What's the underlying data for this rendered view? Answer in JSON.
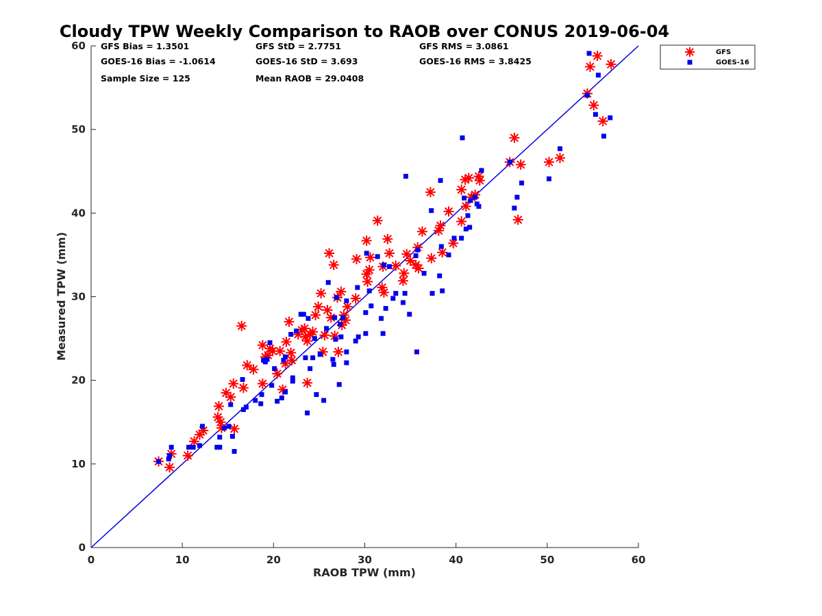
{
  "chart_data": {
    "type": "scatter",
    "title": "Cloudy TPW Weekly Comparison to RAOB over CONUS 2019-06-04",
    "xlabel": "RAOB TPW (mm)",
    "ylabel": "Measured TPW (mm)",
    "xlim": [
      0,
      60
    ],
    "ylim": [
      0,
      60
    ],
    "xticks": [
      "0",
      "10",
      "20",
      "30",
      "40",
      "50",
      "60"
    ],
    "yticks": [
      "0",
      "10",
      "20",
      "30",
      "40",
      "50",
      "60"
    ],
    "grid": false,
    "legend_position": "outside-top-right",
    "reference_line": {
      "type": "1:1",
      "color": "#0000dd"
    },
    "stats": [
      {
        "label": "GFS Bias = 1.3501"
      },
      {
        "label": "GFS StD = 2.7751"
      },
      {
        "label": "GFS RMS = 3.0861"
      },
      {
        "label": "GOES-16 Bias = -1.0614"
      },
      {
        "label": "GOES-16 StD = 3.693"
      },
      {
        "label": "GOES-16 RMS = 3.8425"
      },
      {
        "label": "Sample Size = 125"
      },
      {
        "label": "Mean RAOB = 29.0408"
      }
    ],
    "series": [
      {
        "name": "GFS",
        "marker": "asterisk",
        "color": "#ff0000",
        "points": [
          [
            7.4,
            10.3
          ],
          [
            8.6,
            9.6
          ],
          [
            8.8,
            11.2
          ],
          [
            10.6,
            11.0
          ],
          [
            11.3,
            12.7
          ],
          [
            11.9,
            13.5
          ],
          [
            12.3,
            14.0
          ],
          [
            13.9,
            15.6
          ],
          [
            14.0,
            16.9
          ],
          [
            14.2,
            15.0
          ],
          [
            14.3,
            14.3
          ],
          [
            14.8,
            18.5
          ],
          [
            15.3,
            18.0
          ],
          [
            15.6,
            19.6
          ],
          [
            15.7,
            14.2
          ],
          [
            16.5,
            26.5
          ],
          [
            16.7,
            19.1
          ],
          [
            17.1,
            21.8
          ],
          [
            17.8,
            21.3
          ],
          [
            18.8,
            24.2
          ],
          [
            18.8,
            19.6
          ],
          [
            19.1,
            22.8
          ],
          [
            19.4,
            23.0
          ],
          [
            19.6,
            23.8
          ],
          [
            19.9,
            23.5
          ],
          [
            20.4,
            20.8
          ],
          [
            20.7,
            23.5
          ],
          [
            21.0,
            18.9
          ],
          [
            21.3,
            22.0
          ],
          [
            21.4,
            24.6
          ],
          [
            21.7,
            27.0
          ],
          [
            21.9,
            23.3
          ],
          [
            22.0,
            22.4
          ],
          [
            22.7,
            25.5
          ],
          [
            23.1,
            26.0
          ],
          [
            23.4,
            26.2
          ],
          [
            23.5,
            25.2
          ],
          [
            23.7,
            24.7
          ],
          [
            23.7,
            19.7
          ],
          [
            24.0,
            25.5
          ],
          [
            24.3,
            25.8
          ],
          [
            24.6,
            27.8
          ],
          [
            24.9,
            28.8
          ],
          [
            25.2,
            30.4
          ],
          [
            25.4,
            23.4
          ],
          [
            25.6,
            25.4
          ],
          [
            25.9,
            28.4
          ],
          [
            26.1,
            35.2
          ],
          [
            26.3,
            27.5
          ],
          [
            26.6,
            33.8
          ],
          [
            26.7,
            25.3
          ],
          [
            27.0,
            29.9
          ],
          [
            27.1,
            23.4
          ],
          [
            27.4,
            30.6
          ],
          [
            27.5,
            26.6
          ],
          [
            27.7,
            27.8
          ],
          [
            27.9,
            27.2
          ],
          [
            28.1,
            28.8
          ],
          [
            29.0,
            29.8
          ],
          [
            29.1,
            34.5
          ],
          [
            30.2,
            36.7
          ],
          [
            30.2,
            32.7
          ],
          [
            30.3,
            31.8
          ],
          [
            30.5,
            33.2
          ],
          [
            30.6,
            34.7
          ],
          [
            31.4,
            39.1
          ],
          [
            31.9,
            31.1
          ],
          [
            32.0,
            33.6
          ],
          [
            32.1,
            30.5
          ],
          [
            32.5,
            36.9
          ],
          [
            32.7,
            35.2
          ],
          [
            33.4,
            33.7
          ],
          [
            34.2,
            31.9
          ],
          [
            34.3,
            32.8
          ],
          [
            34.6,
            35.1
          ],
          [
            35.0,
            34.3
          ],
          [
            35.6,
            33.8
          ],
          [
            35.8,
            35.9
          ],
          [
            35.9,
            33.4
          ],
          [
            36.3,
            37.8
          ],
          [
            37.2,
            42.5
          ],
          [
            37.3,
            34.6
          ],
          [
            38.1,
            37.9
          ],
          [
            38.3,
            38.5
          ],
          [
            38.5,
            35.3
          ],
          [
            39.2,
            40.2
          ],
          [
            39.7,
            36.4
          ],
          [
            40.6,
            42.8
          ],
          [
            40.6,
            39.0
          ],
          [
            41.0,
            44.0
          ],
          [
            41.1,
            40.8
          ],
          [
            41.4,
            44.2
          ],
          [
            41.7,
            41.9
          ],
          [
            42.1,
            42.2
          ],
          [
            42.5,
            44.4
          ],
          [
            42.6,
            43.9
          ],
          [
            45.9,
            46.1
          ],
          [
            46.4,
            49.0
          ],
          [
            46.8,
            39.2
          ],
          [
            47.1,
            45.8
          ],
          [
            50.2,
            46.1
          ],
          [
            51.4,
            46.6
          ],
          [
            54.4,
            54.3
          ],
          [
            54.7,
            57.5
          ],
          [
            55.1,
            52.9
          ],
          [
            55.5,
            58.8
          ],
          [
            56.1,
            51.0
          ],
          [
            57.0,
            57.8
          ]
        ]
      },
      {
        "name": "GOES-16",
        "marker": "square",
        "color": "#0000ee",
        "points": [
          [
            7.4,
            10.3
          ],
          [
            8.5,
            10.6
          ],
          [
            8.6,
            11.0
          ],
          [
            8.8,
            12.0
          ],
          [
            10.7,
            12.0
          ],
          [
            11.2,
            12.0
          ],
          [
            11.9,
            12.2
          ],
          [
            12.2,
            14.5
          ],
          [
            13.8,
            12.0
          ],
          [
            14.1,
            12.0
          ],
          [
            14.1,
            13.2
          ],
          [
            14.6,
            14.3
          ],
          [
            15.1,
            14.5
          ],
          [
            15.3,
            17.1
          ],
          [
            15.5,
            13.3
          ],
          [
            15.7,
            11.5
          ],
          [
            16.6,
            20.1
          ],
          [
            16.7,
            16.5
          ],
          [
            17.0,
            16.8
          ],
          [
            18.0,
            17.6
          ],
          [
            18.6,
            17.2
          ],
          [
            18.7,
            18.3
          ],
          [
            18.9,
            22.4
          ],
          [
            19.1,
            22.2
          ],
          [
            19.3,
            22.5
          ],
          [
            19.6,
            24.5
          ],
          [
            19.8,
            19.4
          ],
          [
            20.1,
            21.4
          ],
          [
            20.4,
            17.5
          ],
          [
            20.9,
            17.9
          ],
          [
            21.1,
            22.4
          ],
          [
            21.3,
            18.6
          ],
          [
            21.3,
            22.8
          ],
          [
            21.9,
            25.5
          ],
          [
            22.1,
            19.9
          ],
          [
            22.1,
            20.3
          ],
          [
            22.5,
            25.9
          ],
          [
            23.0,
            27.9
          ],
          [
            23.3,
            27.9
          ],
          [
            23.5,
            22.7
          ],
          [
            23.7,
            16.1
          ],
          [
            23.8,
            27.4
          ],
          [
            24.0,
            21.4
          ],
          [
            24.3,
            22.7
          ],
          [
            24.5,
            25.0
          ],
          [
            24.7,
            18.3
          ],
          [
            25.1,
            23.1
          ],
          [
            25.5,
            17.6
          ],
          [
            25.8,
            26.2
          ],
          [
            26.0,
            31.7
          ],
          [
            26.5,
            22.5
          ],
          [
            26.6,
            21.9
          ],
          [
            26.7,
            27.5
          ],
          [
            26.8,
            24.9
          ],
          [
            26.9,
            29.9
          ],
          [
            27.2,
            19.5
          ],
          [
            27.3,
            26.7
          ],
          [
            27.4,
            25.2
          ],
          [
            27.6,
            27.5
          ],
          [
            28.0,
            29.5
          ],
          [
            28.0,
            23.4
          ],
          [
            28.0,
            22.1
          ],
          [
            29.0,
            24.7
          ],
          [
            29.2,
            31.1
          ],
          [
            29.3,
            25.2
          ],
          [
            30.1,
            28.1
          ],
          [
            30.1,
            25.6
          ],
          [
            30.2,
            35.2
          ],
          [
            30.5,
            30.7
          ],
          [
            30.7,
            28.9
          ],
          [
            31.4,
            34.8
          ],
          [
            31.8,
            27.4
          ],
          [
            32.0,
            25.6
          ],
          [
            32.1,
            33.8
          ],
          [
            32.3,
            28.6
          ],
          [
            32.7,
            33.6
          ],
          [
            33.1,
            29.8
          ],
          [
            33.4,
            30.4
          ],
          [
            34.2,
            29.3
          ],
          [
            34.4,
            30.4
          ],
          [
            34.5,
            44.4
          ],
          [
            34.9,
            27.9
          ],
          [
            35.6,
            34.9
          ],
          [
            35.7,
            23.4
          ],
          [
            35.8,
            35.6
          ],
          [
            36.5,
            32.8
          ],
          [
            37.3,
            40.3
          ],
          [
            37.4,
            30.4
          ],
          [
            38.2,
            32.5
          ],
          [
            38.3,
            43.9
          ],
          [
            38.4,
            36.0
          ],
          [
            38.5,
            30.7
          ],
          [
            39.2,
            35.0
          ],
          [
            39.8,
            37.0
          ],
          [
            40.6,
            37.0
          ],
          [
            40.7,
            49.0
          ],
          [
            40.9,
            41.8
          ],
          [
            41.1,
            38.1
          ],
          [
            41.3,
            39.7
          ],
          [
            41.5,
            38.3
          ],
          [
            41.6,
            41.5
          ],
          [
            42.1,
            41.9
          ],
          [
            42.3,
            41.1
          ],
          [
            42.5,
            40.8
          ],
          [
            42.8,
            45.1
          ],
          [
            45.9,
            46.1
          ],
          [
            46.4,
            40.6
          ],
          [
            46.7,
            41.9
          ],
          [
            47.2,
            43.6
          ],
          [
            50.2,
            44.1
          ],
          [
            51.4,
            47.7
          ],
          [
            54.4,
            54.1
          ],
          [
            54.6,
            59.1
          ],
          [
            55.3,
            51.8
          ],
          [
            55.6,
            56.5
          ],
          [
            56.2,
            49.2
          ],
          [
            56.9,
            51.4
          ]
        ]
      }
    ]
  }
}
